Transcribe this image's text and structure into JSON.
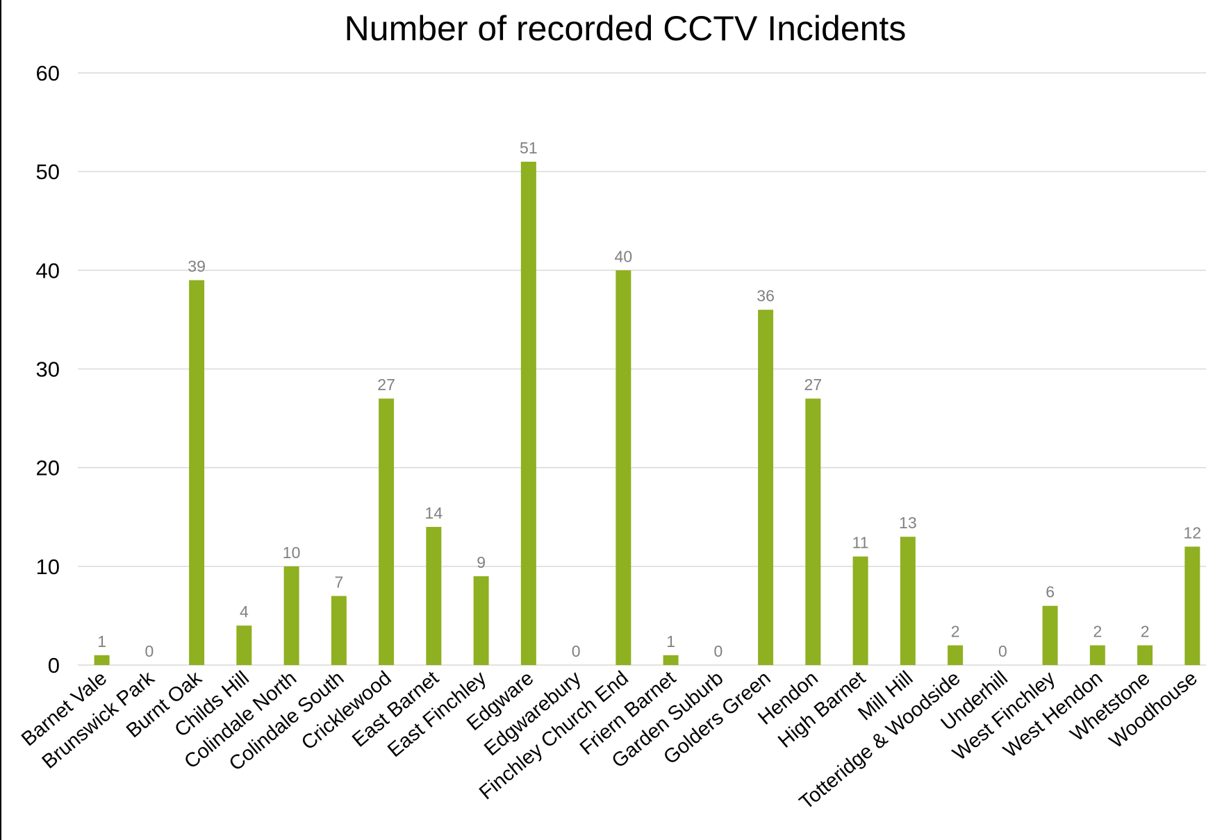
{
  "chart_data": {
    "type": "bar",
    "title": "Number of recorded CCTV Incidents",
    "xlabel": "",
    "ylabel": "",
    "ylim": [
      0,
      60
    ],
    "yticks": [
      0,
      10,
      20,
      30,
      40,
      50,
      60
    ],
    "grid": true,
    "legend": "none",
    "bar_color": "#8fb021",
    "label_color": "#808080",
    "categories": [
      "Barnet Vale",
      "Brunswick Park",
      "Burnt Oak",
      "Childs Hill",
      "Colindale North",
      "Colindale South",
      "Cricklewood",
      "East Barnet",
      "East Finchley",
      "Edgware",
      "Edgwarebury",
      "Finchley Church End",
      "Friern Barnet",
      "Garden Suburb",
      "Golders Green",
      "Hendon",
      "High Barnet",
      "Mill Hill",
      "Totteridge & Woodside",
      "Underhill",
      "West Finchley",
      "West Hendon",
      "Whetstone",
      "Woodhouse"
    ],
    "values": [
      1,
      0,
      39,
      4,
      10,
      7,
      27,
      14,
      9,
      51,
      0,
      40,
      1,
      0,
      36,
      27,
      11,
      13,
      2,
      0,
      6,
      2,
      2,
      12
    ]
  }
}
